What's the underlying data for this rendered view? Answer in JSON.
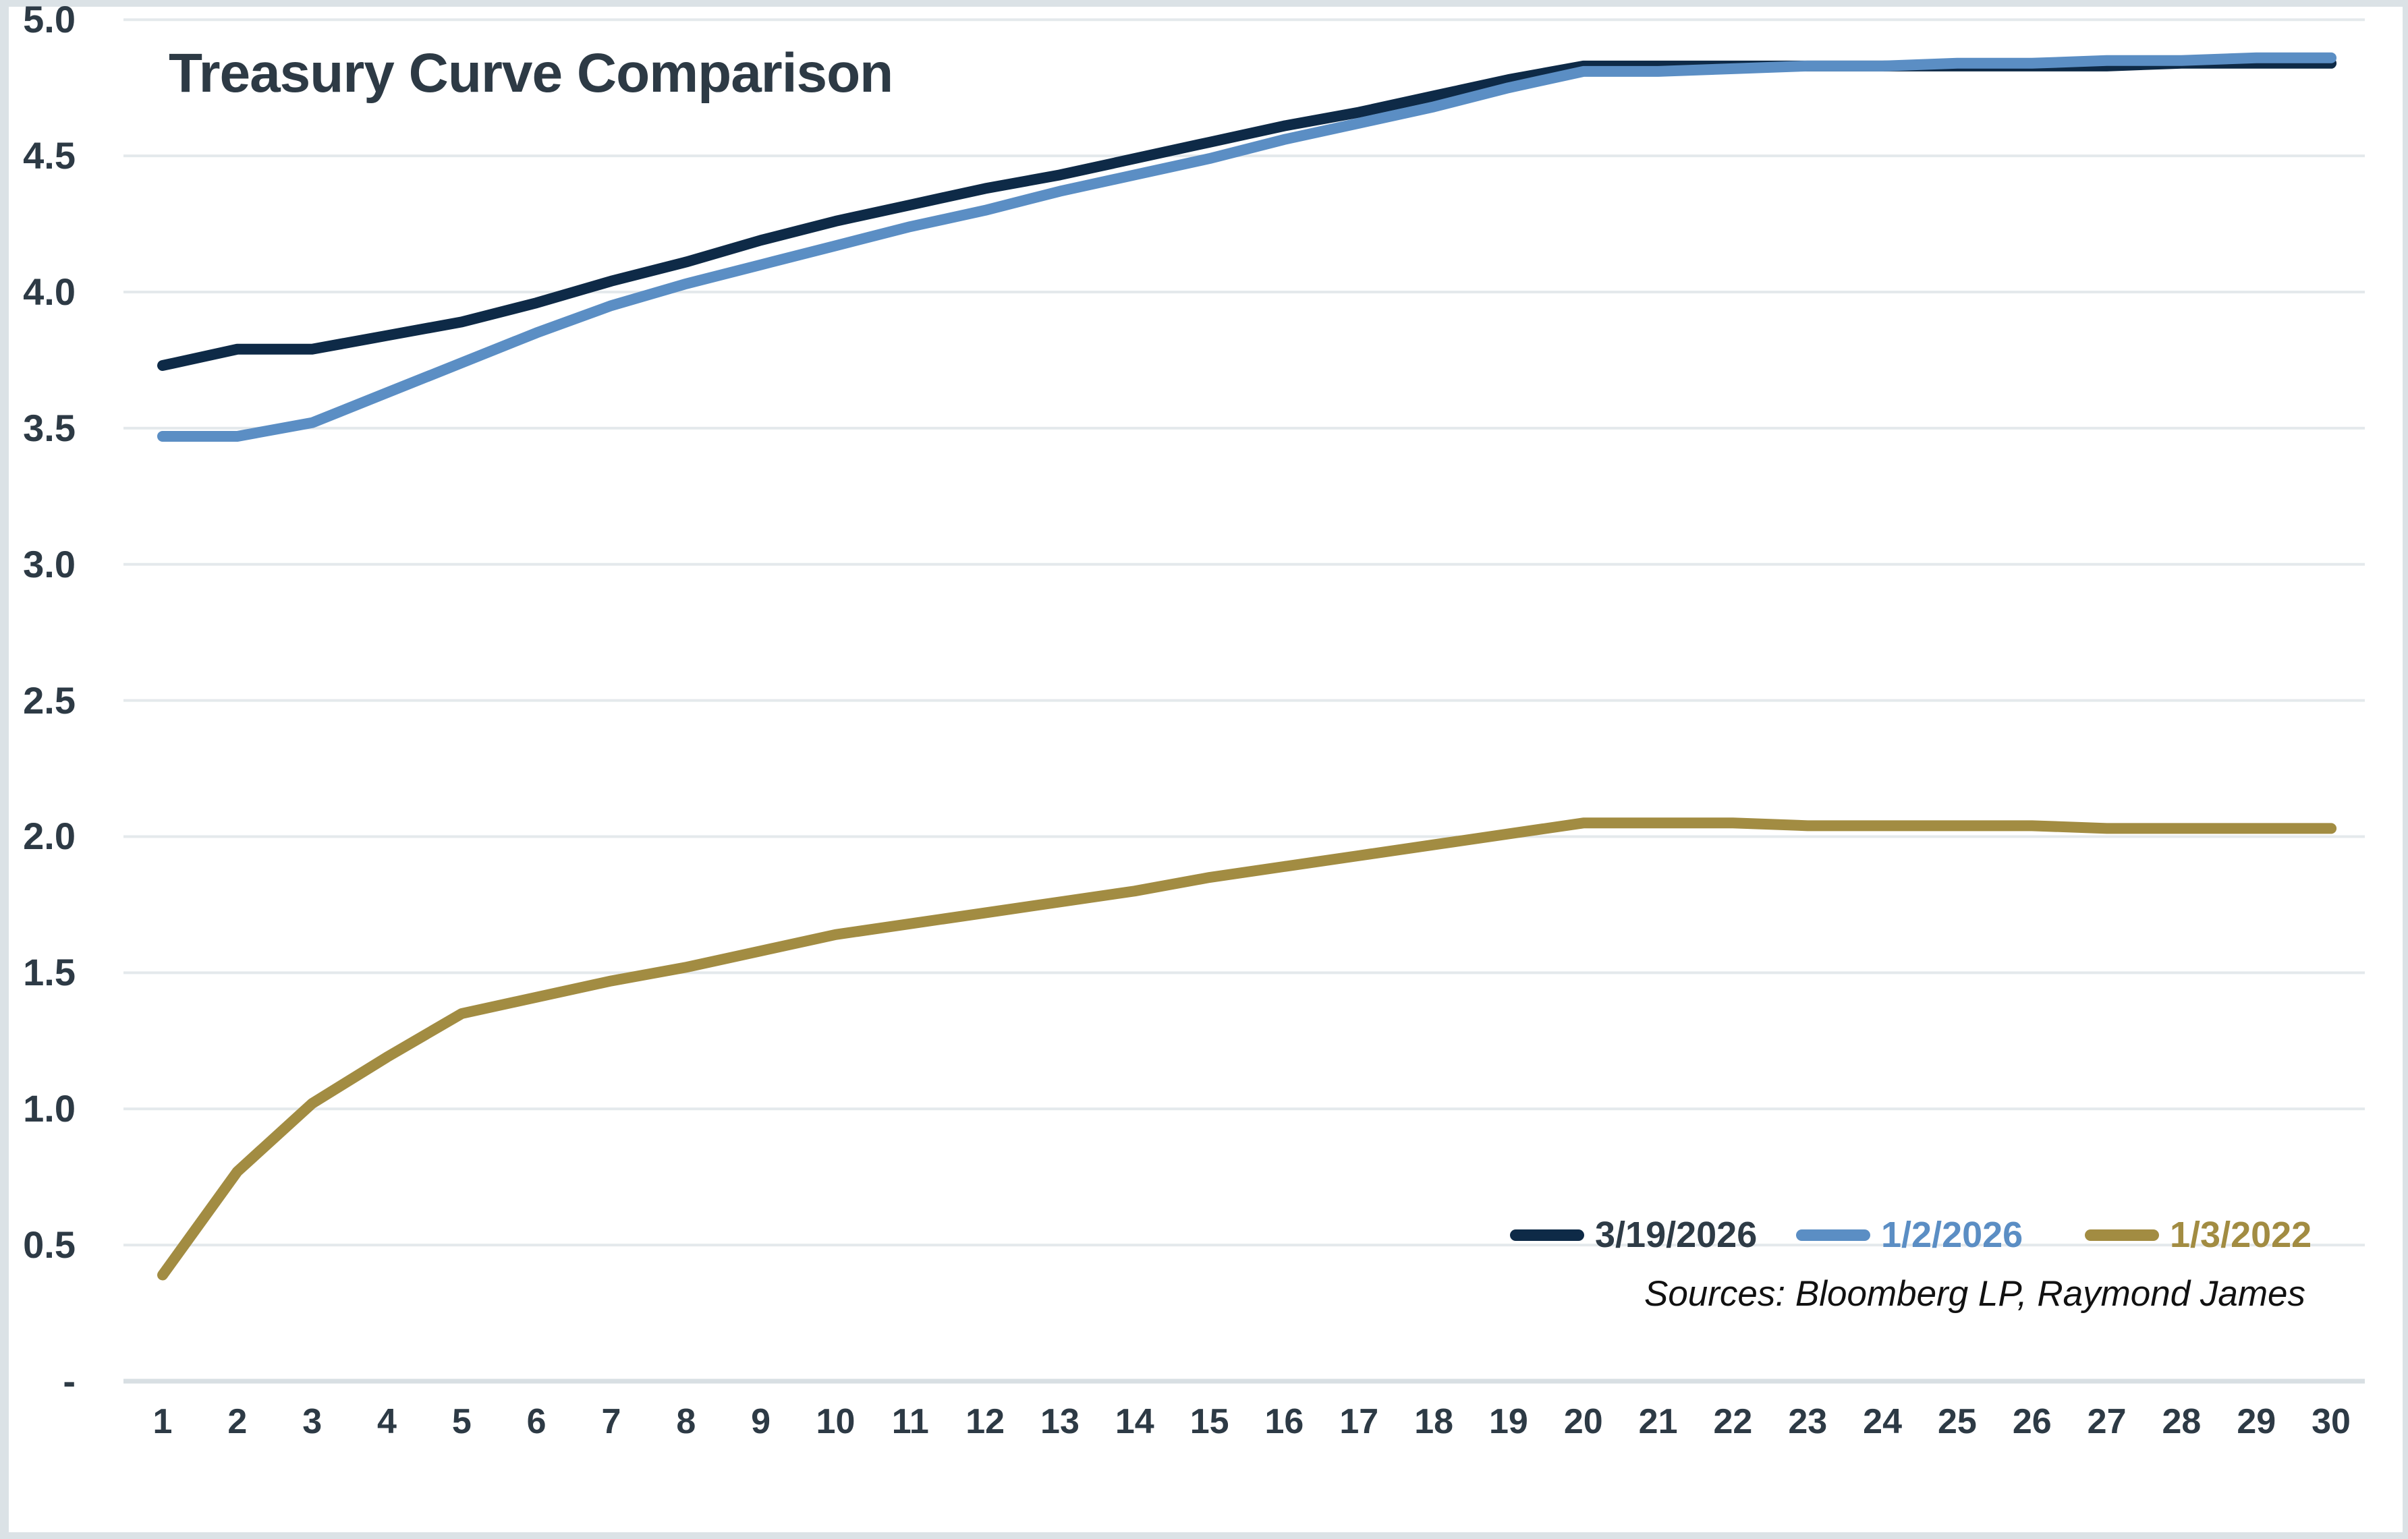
{
  "sources_note": "Sources: Bloomberg LP, Raymond James",
  "colors": {
    "background": "#ffffff",
    "frame_border": "#dbe2e6",
    "gridline": "#e4e9ec",
    "axis_line": "#d8dfe3",
    "text": "#2d3a45"
  },
  "legend": {
    "position": "bottom-right-inside",
    "label_colors": [
      "#2e3b46",
      "#5b8ec4",
      "#a28c42"
    ]
  },
  "chart_data": {
    "type": "line",
    "title": "Treasury Curve Comparison",
    "xlabel": "",
    "ylabel": "",
    "ylim": [
      0,
      5
    ],
    "grid": "horizontal",
    "legend_position": "bottom-right-inside",
    "x_axis": {
      "values": [
        1,
        2,
        3,
        4,
        5,
        6,
        7,
        8,
        9,
        10,
        11,
        12,
        13,
        14,
        15,
        16,
        17,
        18,
        19,
        20,
        21,
        22,
        23,
        24,
        25,
        26,
        27,
        28,
        29,
        30
      ]
    },
    "y_axis": {
      "labels": [
        "5.0",
        "4.5",
        "4.0",
        "3.5",
        "3.0",
        "2.5",
        "2.0",
        "1.5",
        "1.0",
        "0.5",
        "-"
      ],
      "values": [
        5.0,
        4.5,
        4.0,
        3.5,
        3.0,
        2.5,
        2.0,
        1.5,
        1.0,
        0.5,
        0
      ]
    },
    "series": [
      {
        "name": "3/19/2026",
        "color": "#0e2a47",
        "values": [
          3.73,
          3.79,
          3.79,
          3.84,
          3.89,
          3.96,
          4.04,
          4.11,
          4.19,
          4.26,
          4.32,
          4.38,
          4.43,
          4.49,
          4.55,
          4.61,
          4.66,
          4.72,
          4.78,
          4.83,
          4.83,
          4.83,
          4.83,
          4.83,
          4.83,
          4.83,
          4.83,
          4.84,
          4.84,
          4.84
        ]
      },
      {
        "name": "1/2/2026",
        "color": "#5b8ec4",
        "values": [
          3.47,
          3.47,
          3.52,
          3.63,
          3.74,
          3.85,
          3.95,
          4.03,
          4.1,
          4.17,
          4.24,
          4.3,
          4.37,
          4.43,
          4.49,
          4.56,
          4.62,
          4.68,
          4.75,
          4.81,
          4.81,
          4.82,
          4.83,
          4.83,
          4.84,
          4.84,
          4.85,
          4.85,
          4.86,
          4.86
        ]
      },
      {
        "name": "1/3/2022",
        "color": "#a28c42",
        "values": [
          0.39,
          0.77,
          1.02,
          1.19,
          1.35,
          1.41,
          1.47,
          1.52,
          1.58,
          1.64,
          1.68,
          1.72,
          1.76,
          1.8,
          1.85,
          1.89,
          1.93,
          1.97,
          2.01,
          2.05,
          2.05,
          2.05,
          2.04,
          2.04,
          2.04,
          2.04,
          2.03,
          2.03,
          2.03,
          2.03
        ]
      }
    ]
  }
}
